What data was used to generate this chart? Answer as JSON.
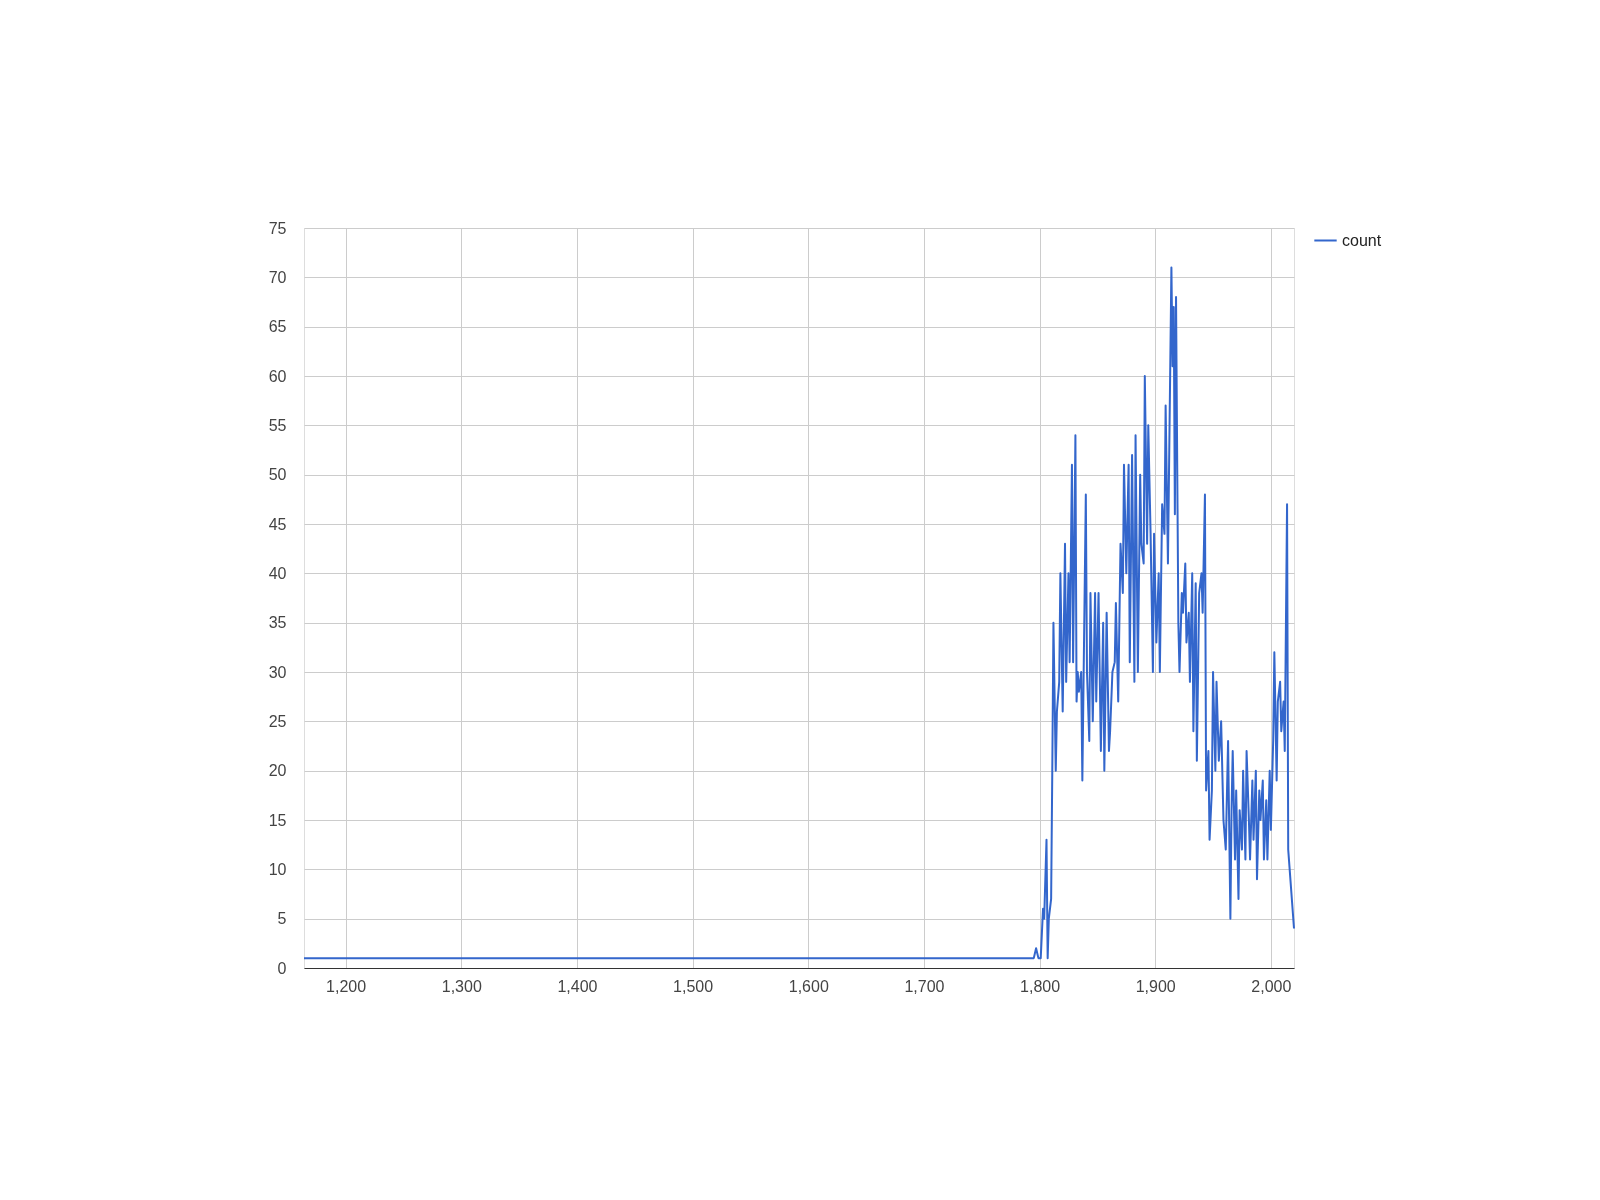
{
  "chart_data": {
    "type": "line",
    "x": [
      1164,
      1795,
      1797,
      1799,
      1801,
      1803,
      1804,
      1806,
      1807,
      1808,
      1810,
      1811,
      1812,
      1814,
      1815,
      1817,
      1818,
      1820,
      1822,
      1823,
      1825,
      1826,
      1828,
      1829,
      1831,
      1832,
      1833,
      1834,
      1836,
      1837,
      1840,
      1841,
      1843,
      1844,
      1846,
      1848,
      1849,
      1851,
      1853,
      1855,
      1856,
      1858,
      1860,
      1861,
      1863,
      1865,
      1866,
      1868,
      1870,
      1872,
      1873,
      1875,
      1877,
      1878,
      1880,
      1882,
      1883,
      1885,
      1887,
      1888,
      1890,
      1891,
      1893,
      1894,
      1896,
      1898,
      1899,
      1901,
      1903,
      1904,
      1906,
      1908,
      1909,
      1911,
      1914,
      1915,
      1916,
      1917,
      1918,
      1920,
      1921,
      1923,
      1924,
      1926,
      1927,
      1929,
      1930,
      1932,
      1933,
      1935,
      1936,
      1938,
      1940,
      1941,
      1943,
      1944,
      1946,
      1947,
      1949,
      1950,
      1952,
      1953,
      1955,
      1957,
      1959,
      1961,
      1963,
      1965,
      1966,
      1967,
      1969,
      1970,
      1972,
      1973,
      1975,
      1976,
      1978,
      1979,
      1981,
      1982,
      1984,
      1985,
      1987,
      1988,
      1990,
      1991,
      1993,
      1994,
      1996,
      1997,
      1999,
      2000,
      2002,
      2003,
      2005,
      2006,
      2008,
      2009,
      2011,
      2012,
      2014,
      2015,
      2020
    ],
    "series": [
      {
        "name": "count",
        "color": "#3366cc",
        "values": [
          1,
          1,
          2,
          1,
          1,
          6,
          5,
          13,
          1,
          5,
          7,
          20,
          35,
          20,
          26,
          29,
          40,
          26,
          43,
          29,
          40,
          31,
          51,
          31,
          54,
          27,
          30,
          28,
          30,
          19,
          48,
          30,
          23,
          38,
          25,
          38,
          27,
          38,
          22,
          35,
          20,
          36,
          22,
          24,
          30,
          31,
          37,
          27,
          43,
          38,
          51,
          40,
          51,
          31,
          52,
          29,
          54,
          30,
          50,
          43,
          41,
          60,
          43,
          55,
          44,
          30,
          44,
          33,
          40,
          30,
          47,
          44,
          57,
          41,
          71,
          61,
          67,
          46,
          68,
          35,
          30,
          38,
          36,
          41,
          33,
          36,
          29,
          40,
          24,
          39,
          21,
          38,
          40,
          36,
          48,
          18,
          22,
          13,
          18,
          30,
          20,
          29,
          21,
          25,
          15,
          12,
          23,
          5,
          16,
          22,
          11,
          18,
          7,
          16,
          12,
          20,
          11,
          22,
          15,
          11,
          19,
          13,
          20,
          9,
          18,
          15,
          19,
          11,
          17,
          11,
          20,
          14,
          23,
          32,
          19,
          27,
          29,
          24,
          27,
          22,
          47,
          12,
          4
        ]
      }
    ],
    "xlim": [
      1164,
      2020
    ],
    "xticks": [
      {
        "value": 1200,
        "label": "1,200"
      },
      {
        "value": 1300,
        "label": "1,300"
      },
      {
        "value": 1400,
        "label": "1,400"
      },
      {
        "value": 1500,
        "label": "1,500"
      },
      {
        "value": 1600,
        "label": "1,600"
      },
      {
        "value": 1700,
        "label": "1,700"
      },
      {
        "value": 1800,
        "label": "1,800"
      },
      {
        "value": 1900,
        "label": "1,900"
      },
      {
        "value": 2000,
        "label": "2,000"
      }
    ],
    "ylim": [
      0,
      75
    ],
    "yticks": [
      0,
      5,
      10,
      15,
      20,
      25,
      30,
      35,
      40,
      45,
      50,
      55,
      60,
      65,
      70,
      75
    ],
    "grid": true,
    "legend": "top right",
    "line_style": "solid",
    "marker": "none"
  }
}
